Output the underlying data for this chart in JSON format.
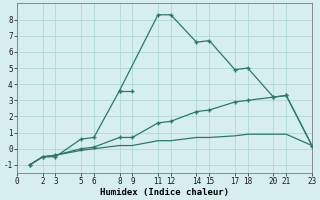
{
  "xlabel": "Humidex (Indice chaleur)",
  "bg_color": "#d6eeee",
  "grid_color": "#b0d8d8",
  "line_color": "#2a7a6a",
  "xlim": [
    0,
    23
  ],
  "ylim": [
    -1.5,
    9.0
  ],
  "xticks": [
    0,
    2,
    3,
    5,
    6,
    8,
    9,
    11,
    12,
    14,
    15,
    17,
    18,
    20,
    21,
    23
  ],
  "yticks": [
    -1,
    0,
    1,
    2,
    3,
    4,
    5,
    6,
    7,
    8
  ],
  "line1_x": [
    1,
    2,
    3,
    5,
    6,
    8,
    11,
    12,
    14,
    15,
    17,
    18,
    20,
    21,
    23
  ],
  "line1_y": [
    -1,
    -0.5,
    -0.5,
    0.6,
    0.7,
    3.6,
    8.3,
    8.3,
    6.6,
    6.7,
    4.9,
    5.0,
    3.2,
    3.3,
    0.2
  ],
  "line2_x": [
    1,
    2,
    3,
    5,
    6,
    8,
    9,
    11,
    12,
    14,
    15,
    17,
    18,
    20,
    21,
    23
  ],
  "line2_y": [
    -1,
    -0.5,
    -0.4,
    0.0,
    0.1,
    0.7,
    0.7,
    1.6,
    1.7,
    2.3,
    2.4,
    2.9,
    3.0,
    3.2,
    3.3,
    0.2
  ],
  "line3_x": [
    8,
    9
  ],
  "line3_y": [
    3.6,
    3.6
  ],
  "line4_x": [
    1,
    2,
    3,
    5,
    6,
    8,
    9,
    11,
    12,
    14,
    15,
    17,
    18,
    20,
    21,
    23
  ],
  "line4_y": [
    -1,
    -0.5,
    -0.4,
    -0.1,
    0.0,
    0.2,
    0.2,
    0.5,
    0.5,
    0.7,
    0.7,
    0.8,
    0.9,
    0.9,
    0.9,
    0.2
  ]
}
